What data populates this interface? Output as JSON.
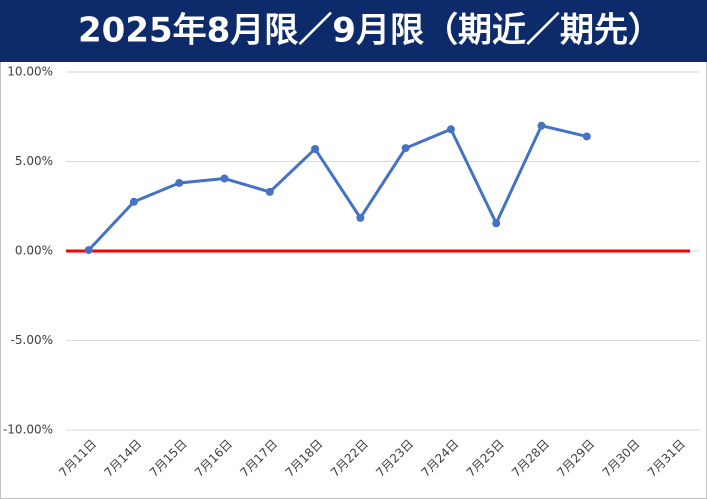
{
  "chart_data": {
    "type": "line",
    "title": "2025年8月限／9月限（期近／期先）",
    "categories": [
      "7月11日",
      "7月14日",
      "7月15日",
      "7月16日",
      "7月17日",
      "7月18日",
      "7月22日",
      "7月23日",
      "7月24日",
      "7月25日",
      "7月28日",
      "7月29日",
      "7月30日",
      "7月31日"
    ],
    "series": [
      {
        "color": "#4472c4",
        "values": [
          0.05,
          2.75,
          3.8,
          4.05,
          3.3,
          5.7,
          1.85,
          5.75,
          6.8,
          1.55,
          7.0,
          6.4,
          null,
          null
        ]
      }
    ],
    "reference_line": {
      "value": 0,
      "color": "#ff0000"
    },
    "ylim": [
      -10,
      10
    ],
    "yticks": [
      {
        "value": 10,
        "label": "10.00%"
      },
      {
        "value": 5,
        "label": "5.00%"
      },
      {
        "value": 0,
        "label": "0.00%"
      },
      {
        "value": -5,
        "label": "-5.00%"
      },
      {
        "value": -10,
        "label": "-10.00%"
      }
    ],
    "grid": true
  }
}
